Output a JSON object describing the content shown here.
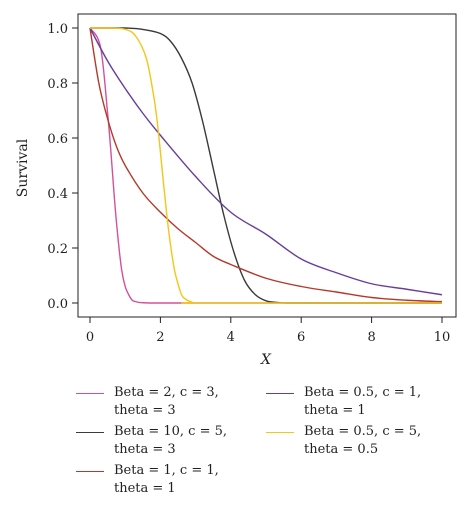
{
  "chart_data": {
    "type": "line",
    "title": "",
    "xlabel": "X",
    "ylabel": "Survival",
    "xlim": [
      0,
      10
    ],
    "ylim": [
      0,
      1
    ],
    "xticks": [
      "0",
      "2",
      "4",
      "6",
      "8",
      "10"
    ],
    "yticks": [
      "0.0",
      "0.2",
      "0.4",
      "0.6",
      "0.8",
      "1.0"
    ],
    "grid": false,
    "legend_position": "bottom",
    "series": [
      {
        "name": "Beta = 2, c = 3, theta = 3",
        "label_lines": [
          "Beta = 2, c = 3,",
          "theta = 3"
        ],
        "color": "#d4519a",
        "x": [
          0,
          0.3,
          0.5,
          0.6,
          0.7,
          0.8,
          0.9,
          1.0,
          1.1,
          1.2,
          1.3,
          1.4,
          1.5,
          1.7,
          2.0,
          3.0,
          10.0
        ],
        "y": [
          1.0,
          0.93,
          0.69,
          0.54,
          0.37,
          0.23,
          0.12,
          0.06,
          0.03,
          0.01,
          0.005,
          0.002,
          0.001,
          0.0,
          0.0,
          0.0,
          0.0
        ]
      },
      {
        "name": "Beta = 10, c = 5, theta = 3",
        "label_lines": [
          "Beta = 10, c = 5,",
          "theta = 3"
        ],
        "color": "#3a3a3a",
        "x": [
          0,
          0.5,
          1.0,
          1.5,
          2.0,
          2.3,
          2.6,
          2.9,
          3.2,
          3.5,
          3.8,
          4.1,
          4.4,
          4.7,
          5.0,
          5.3,
          5.6,
          6.0,
          10.0
        ],
        "y": [
          1.0,
          1.0,
          1.0,
          0.995,
          0.98,
          0.95,
          0.89,
          0.8,
          0.66,
          0.49,
          0.32,
          0.18,
          0.08,
          0.03,
          0.008,
          0.002,
          0.0,
          0.0,
          0.0
        ]
      },
      {
        "name": "Beta = 1, c = 1, theta = 1",
        "label_lines": [
          "Beta = 1, c = 1,",
          "theta = 1"
        ],
        "color": "#b5392b",
        "x": [
          0,
          0.25,
          0.5,
          0.75,
          1.0,
          1.5,
          2.0,
          2.5,
          3.0,
          3.5,
          4.0,
          5.0,
          6.0,
          7.0,
          8.0,
          9.0,
          10.0
        ],
        "y": [
          1.0,
          0.8,
          0.67,
          0.57,
          0.5,
          0.4,
          0.33,
          0.27,
          0.22,
          0.17,
          0.14,
          0.09,
          0.06,
          0.04,
          0.02,
          0.01,
          0.005
        ]
      },
      {
        "name": "Beta = 0.5, c = 1, theta = 1",
        "label_lines": [
          "Beta = 0.5, c = 1,",
          "theta = 1"
        ],
        "color": "#6a3d9a",
        "x": [
          0,
          0.5,
          1.0,
          1.5,
          2.0,
          3.0,
          4.0,
          5.0,
          6.0,
          7.0,
          8.0,
          9.0,
          10.0
        ],
        "y": [
          1.0,
          0.88,
          0.78,
          0.69,
          0.61,
          0.46,
          0.33,
          0.25,
          0.16,
          0.11,
          0.07,
          0.05,
          0.03
        ]
      },
      {
        "name": "Beta = 0.5, c = 5, theta = 0.5",
        "label_lines": [
          "Beta = 0.5, c = 5,",
          "theta = 0.5"
        ],
        "color": "#f5c518",
        "x": [
          0,
          0.5,
          1.0,
          1.3,
          1.6,
          1.8,
          1.9,
          2.0,
          2.1,
          2.2,
          2.3,
          2.4,
          2.5,
          2.6,
          2.7,
          2.9,
          3.2,
          10.0
        ],
        "y": [
          1.0,
          1.0,
          0.995,
          0.97,
          0.89,
          0.76,
          0.67,
          0.55,
          0.42,
          0.3,
          0.2,
          0.12,
          0.07,
          0.03,
          0.015,
          0.003,
          0.0,
          0.0
        ]
      }
    ]
  }
}
